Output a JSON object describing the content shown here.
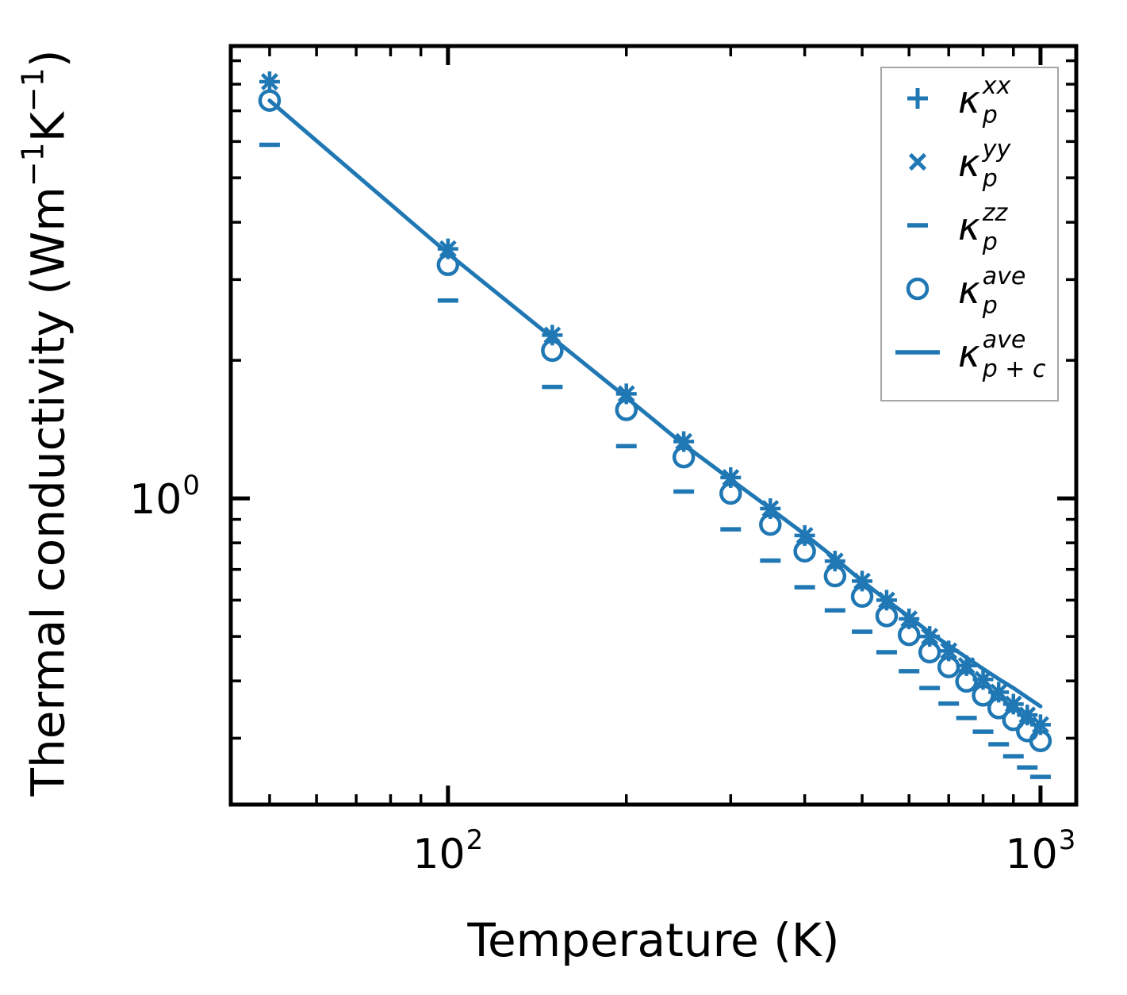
{
  "figure": {
    "accent_color": "#1f77b4",
    "axis_color": "#000000",
    "background_color": "#ffffff",
    "legend_border_color": "#a6a6a6"
  },
  "axes": {
    "x_label": "Temperature (K)",
    "y_label_parts": [
      [
        "text",
        "Thermal conductivity (Wm"
      ],
      [
        "sup",
        "−1"
      ],
      [
        "text",
        "K"
      ],
      [
        "sup",
        "−1"
      ],
      [
        "text",
        ")"
      ]
    ],
    "x_scale": "log",
    "y_scale": "log",
    "xlim": [
      43,
      1149
    ],
    "ylim": [
      0.215,
      9.69
    ],
    "x_major_ticks": [
      {
        "value": 100,
        "base": "10",
        "exp": "2"
      },
      {
        "value": 1000,
        "base": "10",
        "exp": "3"
      }
    ],
    "x_minor_ticks": [
      50,
      60,
      70,
      80,
      90,
      200,
      300,
      400,
      500,
      600,
      700,
      800,
      900
    ],
    "y_major_ticks": [
      {
        "value": 1,
        "base": "10",
        "exp": "0"
      }
    ],
    "y_minor_ticks": [
      9,
      8,
      7,
      6,
      5,
      4,
      3,
      2,
      0.9,
      0.8,
      0.7,
      0.6,
      0.5,
      0.4,
      0.3
    ],
    "grid": "off"
  },
  "legend": {
    "position": "upper right",
    "items": [
      {
        "marker": "plus",
        "main": "κ",
        "sup": "xx",
        "sub": "p"
      },
      {
        "marker": "x",
        "main": "κ",
        "sup": "yy",
        "sub": "p"
      },
      {
        "marker": "hline",
        "main": "κ",
        "sup": "zz",
        "sub": "p"
      },
      {
        "marker": "circle",
        "main": "κ",
        "sup": "ave",
        "sub": "p"
      },
      {
        "marker": "line",
        "main": "κ",
        "sup": "ave",
        "sub": "p + c"
      }
    ]
  },
  "chart_data": {
    "type": "scatter",
    "title": "",
    "xlabel": "Temperature (K)",
    "ylabel": "Thermal conductivity (Wm-1K-1)",
    "x_units": "K",
    "y_units": "W m^-1 K^-1",
    "x": [
      50,
      100,
      150,
      200,
      250,
      300,
      350,
      400,
      450,
      500,
      550,
      600,
      650,
      700,
      750,
      800,
      850,
      900,
      950,
      1000
    ],
    "series": [
      {
        "name": "kappa_p_xx",
        "style": "scatter-plus",
        "values": [
          8.1,
          3.5,
          2.27,
          1.69,
          1.33,
          1.11,
          0.95,
          0.83,
          0.73,
          0.66,
          0.6,
          0.546,
          0.5,
          0.465,
          0.432,
          0.403,
          0.378,
          0.356,
          0.337,
          0.321
        ]
      },
      {
        "name": "kappa_p_yy",
        "style": "scatter-x",
        "values": [
          8.1,
          3.5,
          2.27,
          1.69,
          1.33,
          1.11,
          0.95,
          0.83,
          0.73,
          0.66,
          0.6,
          0.546,
          0.5,
          0.465,
          0.432,
          0.403,
          0.378,
          0.356,
          0.337,
          0.321
        ]
      },
      {
        "name": "kappa_p_zz",
        "style": "scatter-hline",
        "values": [
          5.9,
          2.7,
          1.75,
          1.3,
          1.035,
          0.856,
          0.732,
          0.64,
          0.57,
          0.512,
          0.462,
          0.42,
          0.386,
          0.357,
          0.332,
          0.31,
          0.291,
          0.274,
          0.259,
          0.247
        ]
      },
      {
        "name": "kappa_p_ave",
        "style": "scatter-circle",
        "values": [
          7.37,
          3.23,
          2.1,
          1.56,
          1.23,
          1.025,
          0.877,
          0.767,
          0.677,
          0.611,
          0.554,
          0.504,
          0.462,
          0.429,
          0.399,
          0.372,
          0.349,
          0.329,
          0.311,
          0.296
        ]
      },
      {
        "name": "kappa_p_plus_c_ave",
        "style": "line",
        "values": [
          7.37,
          3.42,
          2.24,
          1.66,
          1.31,
          1.1,
          0.95,
          0.835,
          0.74,
          0.66,
          0.6,
          0.552,
          0.51,
          0.478,
          0.45,
          0.425,
          0.404,
          0.386,
          0.368,
          0.352
        ]
      }
    ]
  }
}
